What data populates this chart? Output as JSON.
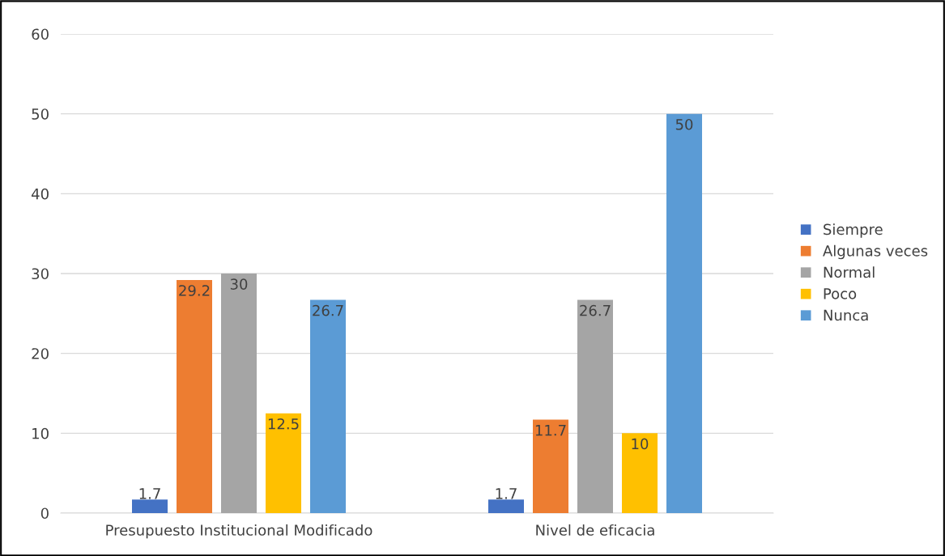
{
  "chart_data": {
    "type": "bar",
    "categories": [
      "Presupuesto Institucional Modificado",
      "Nivel de eficacia"
    ],
    "series": [
      {
        "name": "Siempre",
        "color": "#4472c4",
        "values": [
          1.7,
          1.7
        ]
      },
      {
        "name": "Algunas veces",
        "color": "#ed7d31",
        "values": [
          29.2,
          11.7
        ]
      },
      {
        "name": "Normal",
        "color": "#a5a5a5",
        "values": [
          30,
          26.7
        ]
      },
      {
        "name": "Poco",
        "color": "#ffc000",
        "values": [
          12.5,
          10
        ]
      },
      {
        "name": "Nunca",
        "color": "#5b9bd5",
        "values": [
          26.7,
          50
        ]
      }
    ],
    "ylim": [
      0,
      60
    ],
    "yticks": [
      0,
      10,
      20,
      30,
      40,
      50,
      60
    ],
    "grid": "y",
    "legend": "right",
    "data_labels": true
  }
}
